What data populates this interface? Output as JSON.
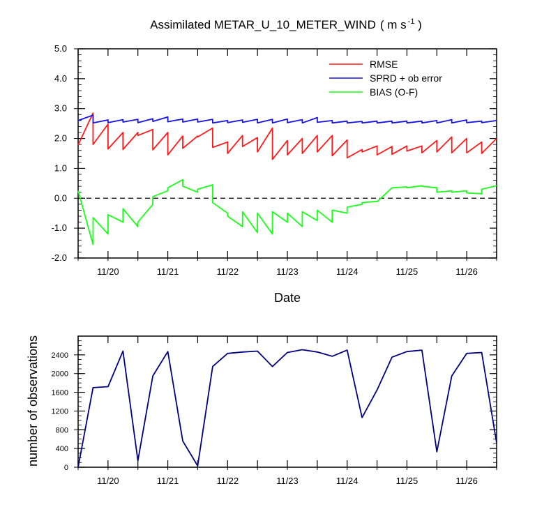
{
  "chart_data": [
    {
      "type": "line",
      "title": "Assimilated METAR_U_10_METER_WIND",
      "title_units": "( m s",
      "title_units_sup": "-1",
      "title_units_close": " )",
      "xlabel": "Date",
      "ylabel": "",
      "x_tick_labels": [
        "11/20",
        "11/21",
        "11/22",
        "11/23",
        "11/24",
        "11/25",
        "11/26"
      ],
      "y_tick_labels": [
        "-2.0",
        "-1.0",
        "0.0",
        "1.0",
        "2.0",
        "3.0",
        "4.0",
        "5.0"
      ],
      "ylim": [
        -2.0,
        5.0
      ],
      "zero_line": "dashed",
      "legend_placement": "top-right",
      "x_unit": "day",
      "series": [
        {
          "name": "RMSE",
          "color": "#ff1a1a",
          "x": [
            0.0,
            0.5,
            0.5,
            1.0,
            1.0,
            1.5,
            1.5,
            2.0,
            2.0,
            2.5,
            2.5,
            3.0,
            3.0,
            3.5,
            3.5,
            4.0,
            4.0,
            4.5,
            4.5,
            5.0,
            5.0,
            5.5,
            5.5,
            6.0,
            6.0,
            6.5,
            6.5,
            7.0,
            7.0,
            7.5,
            7.5,
            8.0,
            8.0,
            8.5,
            8.5,
            9.0,
            9.0,
            9.5,
            9.5,
            10.0,
            10.0,
            10.5,
            10.5,
            11.0,
            11.0,
            11.5,
            11.5,
            12.0,
            12.0,
            12.5,
            12.5,
            13.0,
            13.0,
            13.5,
            13.5,
            14.0
          ],
          "y": [
            1.78,
            2.85,
            1.8,
            2.48,
            1.65,
            2.2,
            1.63,
            2.2,
            2.1,
            2.3,
            1.62,
            2.2,
            1.45,
            2.08,
            1.67,
            2.08,
            2.05,
            2.35,
            1.7,
            1.88,
            1.5,
            2.1,
            1.73,
            2.03,
            1.55,
            2.35,
            1.3,
            1.93,
            1.45,
            2.0,
            1.5,
            2.1,
            1.55,
            2.1,
            1.42,
            1.95,
            1.35,
            1.63,
            1.55,
            1.75,
            1.45,
            1.73,
            1.47,
            1.75,
            1.58,
            1.75,
            1.52,
            1.93,
            1.55,
            2.05,
            1.52,
            2.0,
            1.52,
            1.88,
            1.5,
            2.0
          ]
        },
        {
          "name": "SPRD + ob error",
          "color": "#1414e6",
          "x": [
            0.0,
            0.5,
            0.5,
            1.0,
            1.0,
            1.5,
            1.5,
            2.0,
            2.0,
            2.5,
            2.5,
            3.0,
            3.0,
            3.5,
            3.5,
            4.0,
            4.0,
            4.5,
            4.5,
            5.0,
            5.0,
            5.5,
            5.5,
            6.0,
            6.0,
            6.5,
            6.5,
            7.0,
            7.0,
            7.5,
            7.5,
            8.0,
            8.0,
            8.5,
            8.5,
            9.0,
            9.0,
            9.5,
            9.5,
            10.0,
            10.0,
            10.5,
            10.5,
            11.0,
            11.0,
            11.5,
            11.5,
            12.0,
            12.0,
            12.5,
            12.5,
            13.0,
            13.0,
            13.5,
            13.5,
            14.0
          ],
          "y": [
            2.6,
            2.78,
            2.52,
            2.62,
            2.53,
            2.63,
            2.55,
            2.64,
            2.53,
            2.66,
            2.57,
            2.72,
            2.56,
            2.65,
            2.55,
            2.65,
            2.55,
            2.64,
            2.52,
            2.6,
            2.53,
            2.62,
            2.54,
            2.64,
            2.52,
            2.64,
            2.52,
            2.65,
            2.53,
            2.63,
            2.52,
            2.7,
            2.54,
            2.6,
            2.52,
            2.58,
            2.52,
            2.57,
            2.52,
            2.58,
            2.52,
            2.58,
            2.52,
            2.58,
            2.52,
            2.58,
            2.52,
            2.6,
            2.52,
            2.63,
            2.52,
            2.62,
            2.53,
            2.58,
            2.53,
            2.6
          ]
        },
        {
          "name": "BIAS (O-F)",
          "color": "#1aff1a",
          "x": [
            0.0,
            0.5,
            0.5,
            1.0,
            1.0,
            1.5,
            1.5,
            2.0,
            2.0,
            2.5,
            2.5,
            3.0,
            3.0,
            3.5,
            3.5,
            4.0,
            4.0,
            4.5,
            4.5,
            5.0,
            5.0,
            5.5,
            5.5,
            6.0,
            6.0,
            6.5,
            6.5,
            7.0,
            7.0,
            7.5,
            7.5,
            8.0,
            8.0,
            8.5,
            8.5,
            9.0,
            9.0,
            9.5,
            9.5,
            10.0,
            10.0,
            10.5,
            10.5,
            11.0,
            11.0,
            11.5,
            11.5,
            12.0,
            12.0,
            12.5,
            12.5,
            13.0,
            13.0,
            13.5,
            13.5,
            14.0
          ],
          "y": [
            0.25,
            -1.55,
            -0.65,
            -1.2,
            -0.55,
            -0.8,
            -0.35,
            -0.95,
            -0.8,
            -0.2,
            0.05,
            0.25,
            0.35,
            0.62,
            0.4,
            0.2,
            0.3,
            0.45,
            -0.15,
            -0.5,
            -0.6,
            -0.95,
            -0.45,
            -1.15,
            -0.5,
            -1.2,
            -0.45,
            -0.8,
            -0.5,
            -0.95,
            -0.45,
            -0.75,
            -0.4,
            -0.8,
            -0.4,
            -0.5,
            -0.3,
            -0.2,
            -0.15,
            -0.1,
            -0.12,
            0.35,
            0.35,
            0.38,
            0.35,
            0.42,
            0.4,
            0.35,
            0.2,
            0.25,
            0.2,
            0.25,
            0.18,
            0.15,
            0.3,
            0.42
          ]
        }
      ]
    },
    {
      "type": "line",
      "title": "",
      "xlabel": "",
      "ylabel": "number of observations",
      "x_tick_labels": [
        "11/20",
        "11/21",
        "11/22",
        "11/23",
        "11/24",
        "11/25",
        "11/26"
      ],
      "y_tick_labels": [
        "0",
        "400",
        "800",
        "1200",
        "1600",
        "2000",
        "2400"
      ],
      "ylim": [
        0,
        2800
      ],
      "x_unit": "day",
      "series": [
        {
          "name": "",
          "color": "#000080",
          "x": [
            0.0,
            0.5,
            1.0,
            1.5,
            2.0,
            2.5,
            3.0,
            3.5,
            4.0,
            4.5,
            5.0,
            5.5,
            6.0,
            6.5,
            7.0,
            7.5,
            8.0,
            8.5,
            9.0,
            9.5,
            10.0,
            10.5,
            11.0,
            11.5,
            12.0,
            12.5,
            13.0,
            13.5,
            14.0
          ],
          "y": [
            0,
            1700,
            1720,
            2480,
            140,
            1950,
            2470,
            560,
            30,
            2150,
            2430,
            2460,
            2480,
            2150,
            2450,
            2510,
            2460,
            2370,
            2500,
            1060,
            1650,
            2350,
            2470,
            2500,
            330,
            1950,
            2430,
            2450,
            520
          ]
        }
      ]
    }
  ]
}
